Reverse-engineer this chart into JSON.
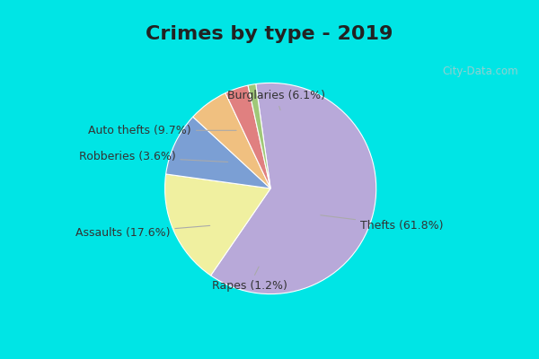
{
  "title": "Crimes by type - 2019",
  "slices": [
    {
      "label": "Thefts",
      "pct": 61.8,
      "color": "#b8a9d9"
    },
    {
      "label": "Assaults",
      "pct": 17.6,
      "color": "#f0f0a0"
    },
    {
      "label": "Auto thefts",
      "pct": 9.7,
      "color": "#7b9fd4"
    },
    {
      "label": "Burglaries",
      "pct": 6.1,
      "color": "#f0c080"
    },
    {
      "label": "Robberies",
      "pct": 3.6,
      "color": "#e08080"
    },
    {
      "label": "Rapes",
      "pct": 1.2,
      "color": "#a0c878"
    }
  ],
  "bg_outer": "#00e5e5",
  "bg_inner": "#d8eed8",
  "title_fontsize": 16,
  "label_fontsize": 9,
  "watermark": "City-Data.com"
}
